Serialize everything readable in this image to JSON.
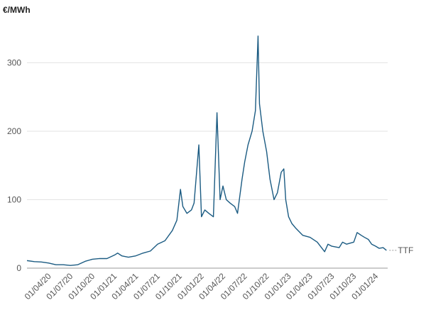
{
  "chart_data": {
    "type": "line",
    "y_label": "€/MWh",
    "x": [
      "2020-01-01",
      "2020-02-01",
      "2020-03-01",
      "2020-04-01",
      "2020-05-01",
      "2020-06-01",
      "2020-07-01",
      "2020-08-01",
      "2020-09-01",
      "2020-10-01",
      "2020-11-01",
      "2020-12-01",
      "2021-01-01",
      "2021-01-15",
      "2021-02-01",
      "2021-03-01",
      "2021-04-01",
      "2021-05-01",
      "2021-06-01",
      "2021-07-01",
      "2021-08-01",
      "2021-09-01",
      "2021-09-20",
      "2021-10-05",
      "2021-10-15",
      "2021-11-01",
      "2021-11-20",
      "2021-12-01",
      "2021-12-21",
      "2022-01-01",
      "2022-01-15",
      "2022-02-01",
      "2022-02-20",
      "2022-03-07",
      "2022-03-20",
      "2022-04-01",
      "2022-04-15",
      "2022-05-01",
      "2022-05-20",
      "2022-06-01",
      "2022-06-20",
      "2022-07-01",
      "2022-07-15",
      "2022-08-01",
      "2022-08-15",
      "2022-08-26",
      "2022-09-01",
      "2022-09-15",
      "2022-10-01",
      "2022-10-15",
      "2022-11-01",
      "2022-11-15",
      "2022-12-01",
      "2022-12-12",
      "2022-12-20",
      "2023-01-01",
      "2023-01-15",
      "2023-02-01",
      "2023-03-01",
      "2023-04-01",
      "2023-05-01",
      "2023-06-01",
      "2023-06-15",
      "2023-07-01",
      "2023-08-01",
      "2023-08-15",
      "2023-09-01",
      "2023-10-01",
      "2023-10-15",
      "2023-11-01",
      "2023-11-15",
      "2023-12-01",
      "2023-12-15",
      "2024-01-01",
      "2024-01-15",
      "2024-02-01",
      "2024-02-15"
    ],
    "series": [
      {
        "name": "TTF",
        "color": "#1b5b82",
        "values": [
          11,
          9.5,
          9,
          7.5,
          5,
          5,
          4,
          5,
          10,
          13,
          14,
          14,
          19,
          22,
          18,
          16,
          18,
          22,
          25,
          35,
          40,
          55,
          70,
          115,
          90,
          80,
          85,
          95,
          180,
          75,
          85,
          80,
          75,
          227,
          100,
          120,
          100,
          95,
          90,
          80,
          130,
          155,
          180,
          200,
          230,
          339,
          240,
          200,
          170,
          130,
          100,
          110,
          140,
          145,
          100,
          75,
          65,
          58,
          48,
          45,
          38,
          24,
          35,
          32,
          30,
          38,
          35,
          38,
          52,
          48,
          45,
          42,
          35,
          32,
          29,
          30,
          26
        ]
      }
    ],
    "xlim": [
      "2020-01-01",
      "2024-02-20"
    ],
    "xticks": [
      {
        "value": "2020-04-01",
        "label": "01/04/20"
      },
      {
        "value": "2020-07-01",
        "label": "01/07/20"
      },
      {
        "value": "2020-10-01",
        "label": "01/10/20"
      },
      {
        "value": "2021-01-01",
        "label": "01/01/21"
      },
      {
        "value": "2021-04-01",
        "label": "01/04/21"
      },
      {
        "value": "2021-07-01",
        "label": "01/07/21"
      },
      {
        "value": "2021-10-01",
        "label": "01/10/21"
      },
      {
        "value": "2022-01-01",
        "label": "01/01/22"
      },
      {
        "value": "2022-04-01",
        "label": "01/04/22"
      },
      {
        "value": "2022-07-01",
        "label": "01/07/22"
      },
      {
        "value": "2022-10-01",
        "label": "01/10/22"
      },
      {
        "value": "2023-01-01",
        "label": "01/01/23"
      },
      {
        "value": "2023-04-01",
        "label": "01/04/23"
      },
      {
        "value": "2023-07-01",
        "label": "01/07/23"
      },
      {
        "value": "2023-10-01",
        "label": "01/10/23"
      },
      {
        "value": "2024-01-01",
        "label": "01/01/24"
      }
    ],
    "ylim": [
      0,
      345
    ],
    "yticks": [
      0,
      100,
      200,
      300
    ],
    "grid": true
  }
}
